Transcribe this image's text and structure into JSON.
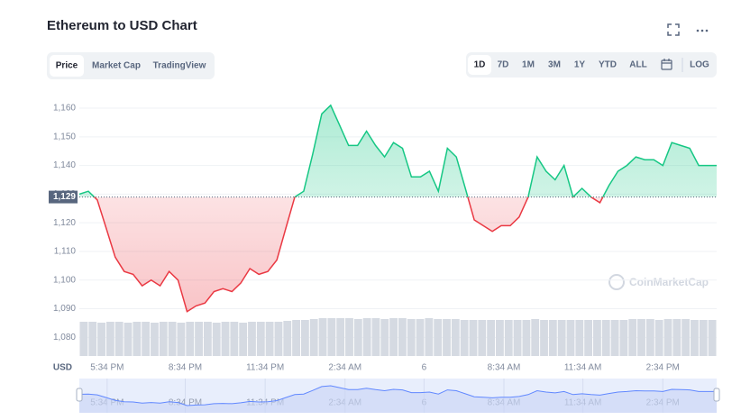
{
  "header": {
    "title": "Ethereum to USD Chart",
    "tabs": [
      "Price",
      "Market Cap",
      "TradingView"
    ],
    "ranges": [
      "1D",
      "7D",
      "1M",
      "3M",
      "1Y",
      "YTD",
      "ALL"
    ],
    "log": "LOG"
  },
  "chart_data": {
    "type": "line",
    "y_label": "USD",
    "watermark": "CoinMarketCap",
    "values": [
      1130,
      1131,
      1128,
      1118,
      1108,
      1103,
      1102,
      1098,
      1100,
      1098,
      1103,
      1100,
      1089,
      1091,
      1092,
      1096,
      1097,
      1096,
      1099,
      1104,
      1102,
      1103,
      1107,
      1118,
      1129,
      1131,
      1144,
      1158,
      1161,
      1154,
      1147,
      1147,
      1152,
      1147,
      1143,
      1148,
      1146,
      1136,
      1136,
      1138,
      1131,
      1146,
      1143,
      1132,
      1121,
      1119,
      1117,
      1119,
      1119,
      1122,
      1129,
      1143,
      1138,
      1135,
      1140,
      1129,
      1132,
      1129,
      1127,
      1133,
      1138,
      1140,
      1143,
      1142,
      1142,
      1140,
      1148,
      1147,
      1146,
      1140,
      1140,
      1140
    ],
    "volume": [
      38,
      38,
      37,
      38,
      38,
      37,
      38,
      38,
      37,
      38,
      38,
      37,
      38,
      38,
      38,
      37,
      38,
      38,
      37,
      38,
      38,
      38,
      38,
      39,
      40,
      40,
      41,
      42,
      42,
      42,
      42,
      41,
      42,
      42,
      41,
      42,
      42,
      41,
      41,
      42,
      41,
      41,
      41,
      40,
      40,
      40,
      40,
      40,
      40,
      40,
      40,
      41,
      40,
      40,
      40,
      40,
      40,
      40,
      40,
      40,
      40,
      40,
      41,
      41,
      41,
      40,
      41,
      41,
      41,
      40,
      40,
      40
    ],
    "reference": {
      "value": 1129,
      "label": "1,129"
    },
    "up_color": "#16c784",
    "down_color": "#ea3943",
    "xlim": [
      0,
      71
    ],
    "ylim": [
      1073.5,
      1166.3
    ],
    "xticks": [
      {
        "value": 3.1,
        "label": "5:34 PM"
      },
      {
        "value": 11.8,
        "label": "8:34 PM"
      },
      {
        "value": 20.7,
        "label": "11:34 PM"
      },
      {
        "value": 29.6,
        "label": "2:34 AM"
      },
      {
        "value": 38.4,
        "label": "6"
      },
      {
        "value": 47.3,
        "label": "8:34 AM"
      },
      {
        "value": 56.1,
        "label": "11:34 AM"
      },
      {
        "value": 65.0,
        "label": "2:34 PM"
      }
    ],
    "yticks": [
      {
        "value": 1080,
        "label": "1,080"
      },
      {
        "value": 1090,
        "label": "1,090"
      },
      {
        "value": 1100,
        "label": "1,100"
      },
      {
        "value": 1110,
        "label": "1,110"
      },
      {
        "value": 1120,
        "label": "1,120"
      },
      {
        "value": 1130,
        "label": "1,130"
      },
      {
        "value": 1140,
        "label": "1,140"
      },
      {
        "value": 1150,
        "label": "1,150"
      },
      {
        "value": 1160,
        "label": "1,160"
      }
    ],
    "grid": true
  }
}
